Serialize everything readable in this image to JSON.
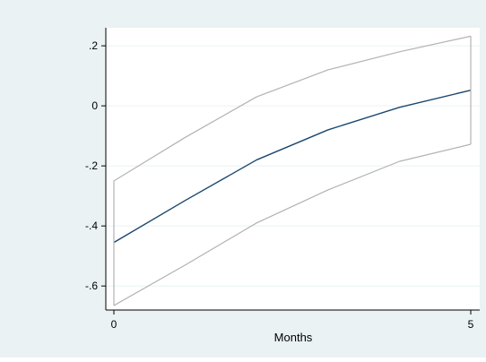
{
  "chart_data": {
    "type": "line",
    "title": "",
    "xlabel": "Months",
    "ylabel": "",
    "x": [
      0,
      1,
      2,
      3,
      4,
      5
    ],
    "xlim": [
      0,
      5
    ],
    "ylim": [
      -0.68,
      0.26
    ],
    "xticks": [
      {
        "value": 0,
        "label": "0"
      },
      {
        "value": 5,
        "label": "5"
      }
    ],
    "yticks": [
      {
        "value": -0.6,
        "label": "-.6"
      },
      {
        "value": -0.4,
        "label": "-.4"
      },
      {
        "value": -0.2,
        "label": "-.2"
      },
      {
        "value": 0,
        "label": "0"
      },
      {
        "value": 0.2,
        "label": ".2"
      }
    ],
    "grid": true,
    "legend": "none",
    "series": [
      {
        "role": "estimate",
        "color": "#1a476f",
        "values": [
          -0.455,
          -0.315,
          -0.18,
          -0.08,
          -0.005,
          0.052
        ]
      },
      {
        "role": "upper-bound",
        "color": "#b2b2b2",
        "values": [
          -0.25,
          -0.105,
          0.03,
          0.12,
          0.18,
          0.232
        ]
      },
      {
        "role": "lower-bound",
        "color": "#b2b2b2",
        "values": [
          -0.665,
          -0.53,
          -0.39,
          -0.28,
          -0.185,
          -0.128
        ]
      }
    ],
    "colors": {
      "outer_background": "#eaf2f3",
      "plot_background": "#ffffff",
      "grid": "#eaf2f3",
      "axis": "#000000"
    }
  }
}
